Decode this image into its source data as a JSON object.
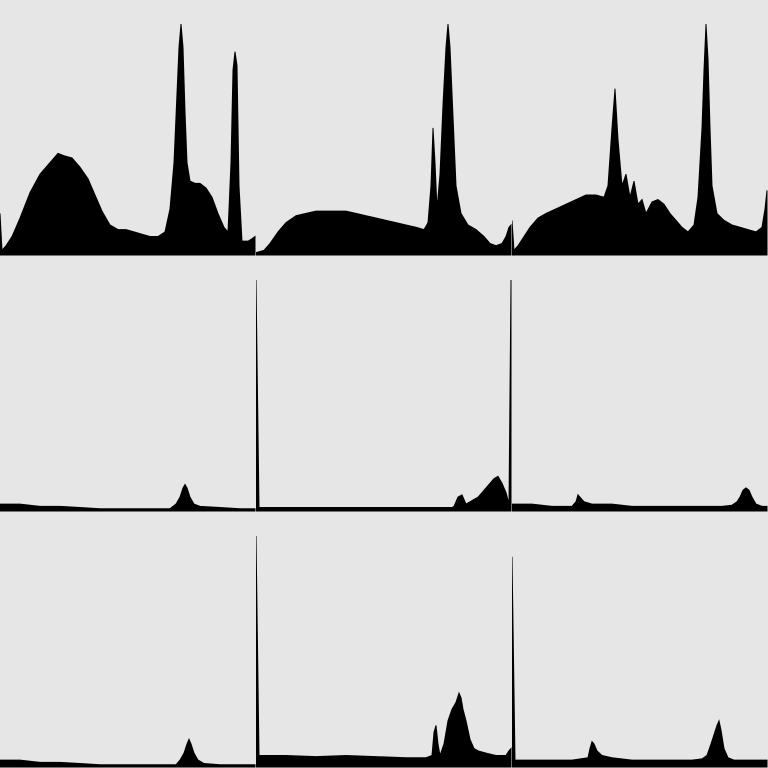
{
  "colors": {
    "background": "#e6e6e6",
    "fill": "#000000"
  },
  "chart_data": [
    {
      "type": "area",
      "title": "",
      "xlim": [
        0,
        255
      ],
      "ylim": [
        0,
        1
      ],
      "grid": false,
      "points": [
        [
          0,
          0.18
        ],
        [
          2,
          0.02
        ],
        [
          6,
          0.04
        ],
        [
          12,
          0.08
        ],
        [
          20,
          0.16
        ],
        [
          30,
          0.27
        ],
        [
          40,
          0.35
        ],
        [
          50,
          0.4
        ],
        [
          58,
          0.44
        ],
        [
          64,
          0.43
        ],
        [
          72,
          0.42
        ],
        [
          80,
          0.38
        ],
        [
          88,
          0.33
        ],
        [
          95,
          0.26
        ],
        [
          102,
          0.19
        ],
        [
          110,
          0.13
        ],
        [
          118,
          0.11
        ],
        [
          126,
          0.11
        ],
        [
          134,
          0.1
        ],
        [
          142,
          0.09
        ],
        [
          150,
          0.08
        ],
        [
          158,
          0.08
        ],
        [
          165,
          0.1
        ],
        [
          170,
          0.2
        ],
        [
          174,
          0.4
        ],
        [
          177,
          0.7
        ],
        [
          179,
          0.9
        ],
        [
          181,
          1.0
        ],
        [
          183,
          0.9
        ],
        [
          185,
          0.62
        ],
        [
          187,
          0.4
        ],
        [
          190,
          0.32
        ],
        [
          195,
          0.31
        ],
        [
          200,
          0.31
        ],
        [
          206,
          0.29
        ],
        [
          212,
          0.25
        ],
        [
          218,
          0.18
        ],
        [
          224,
          0.12
        ],
        [
          228,
          0.1
        ],
        [
          231,
          0.4
        ],
        [
          233,
          0.8
        ],
        [
          235,
          0.88
        ],
        [
          237,
          0.82
        ],
        [
          239,
          0.3
        ],
        [
          242,
          0.06
        ],
        [
          248,
          0.06
        ],
        [
          252,
          0.07
        ],
        [
          255,
          0.08
        ]
      ]
    },
    {
      "type": "area",
      "title": "",
      "xlim": [
        0,
        255
      ],
      "ylim": [
        0,
        1
      ],
      "grid": false,
      "points": [
        [
          0,
          0.01
        ],
        [
          8,
          0.02
        ],
        [
          14,
          0.05
        ],
        [
          22,
          0.1
        ],
        [
          30,
          0.14
        ],
        [
          40,
          0.17
        ],
        [
          50,
          0.18
        ],
        [
          60,
          0.19
        ],
        [
          70,
          0.19
        ],
        [
          80,
          0.19
        ],
        [
          90,
          0.19
        ],
        [
          100,
          0.18
        ],
        [
          110,
          0.17
        ],
        [
          120,
          0.16
        ],
        [
          130,
          0.15
        ],
        [
          140,
          0.14
        ],
        [
          150,
          0.13
        ],
        [
          160,
          0.12
        ],
        [
          168,
          0.11
        ],
        [
          172,
          0.14
        ],
        [
          175,
          0.3
        ],
        [
          177,
          0.55
        ],
        [
          179,
          0.4
        ],
        [
          181,
          0.2
        ],
        [
          184,
          0.35
        ],
        [
          187,
          0.65
        ],
        [
          190,
          0.9
        ],
        [
          192,
          1.0
        ],
        [
          194,
          0.9
        ],
        [
          197,
          0.6
        ],
        [
          200,
          0.3
        ],
        [
          205,
          0.18
        ],
        [
          212,
          0.13
        ],
        [
          220,
          0.11
        ],
        [
          228,
          0.08
        ],
        [
          234,
          0.05
        ],
        [
          240,
          0.04
        ],
        [
          246,
          0.05
        ],
        [
          250,
          0.08
        ],
        [
          253,
          0.12
        ],
        [
          255,
          0.13
        ]
      ]
    },
    {
      "type": "area",
      "title": "",
      "xlim": [
        0,
        255
      ],
      "ylim": [
        0,
        1
      ],
      "grid": false,
      "points": [
        [
          0,
          0.15
        ],
        [
          2,
          0.02
        ],
        [
          6,
          0.04
        ],
        [
          12,
          0.08
        ],
        [
          18,
          0.12
        ],
        [
          26,
          0.16
        ],
        [
          34,
          0.18
        ],
        [
          44,
          0.2
        ],
        [
          54,
          0.22
        ],
        [
          64,
          0.24
        ],
        [
          74,
          0.26
        ],
        [
          84,
          0.26
        ],
        [
          92,
          0.25
        ],
        [
          96,
          0.3
        ],
        [
          100,
          0.55
        ],
        [
          103,
          0.72
        ],
        [
          106,
          0.5
        ],
        [
          110,
          0.3
        ],
        [
          114,
          0.35
        ],
        [
          118,
          0.25
        ],
        [
          122,
          0.32
        ],
        [
          126,
          0.22
        ],
        [
          130,
          0.24
        ],
        [
          134,
          0.18
        ],
        [
          140,
          0.23
        ],
        [
          146,
          0.24
        ],
        [
          152,
          0.22
        ],
        [
          158,
          0.18
        ],
        [
          164,
          0.15
        ],
        [
          170,
          0.12
        ],
        [
          176,
          0.1
        ],
        [
          182,
          0.13
        ],
        [
          186,
          0.25
        ],
        [
          190,
          0.55
        ],
        [
          192,
          0.8
        ],
        [
          194,
          1.0
        ],
        [
          196,
          0.85
        ],
        [
          198,
          0.55
        ],
        [
          200,
          0.3
        ],
        [
          205,
          0.18
        ],
        [
          212,
          0.15
        ],
        [
          220,
          0.13
        ],
        [
          228,
          0.12
        ],
        [
          236,
          0.11
        ],
        [
          244,
          0.1
        ],
        [
          250,
          0.12
        ],
        [
          253,
          0.2
        ],
        [
          255,
          0.28
        ]
      ]
    },
    {
      "type": "area",
      "title": "",
      "xlim": [
        0,
        255
      ],
      "ylim": [
        0,
        1
      ],
      "grid": false,
      "points": [
        [
          0,
          0.03
        ],
        [
          20,
          0.03
        ],
        [
          40,
          0.02
        ],
        [
          60,
          0.02
        ],
        [
          80,
          0.015
        ],
        [
          100,
          0.01
        ],
        [
          120,
          0.01
        ],
        [
          140,
          0.01
        ],
        [
          160,
          0.01
        ],
        [
          170,
          0.01
        ],
        [
          176,
          0.03
        ],
        [
          180,
          0.06
        ],
        [
          183,
          0.1
        ],
        [
          185,
          0.115
        ],
        [
          187,
          0.1
        ],
        [
          190,
          0.06
        ],
        [
          194,
          0.03
        ],
        [
          200,
          0.02
        ],
        [
          220,
          0.015
        ],
        [
          240,
          0.01
        ],
        [
          250,
          0.01
        ],
        [
          255,
          0.01
        ]
      ]
    },
    {
      "type": "area",
      "title": "",
      "xlim": [
        0,
        255
      ],
      "ylim": [
        0,
        1
      ],
      "grid": false,
      "points": [
        [
          0,
          1.0
        ],
        [
          3,
          0.015
        ],
        [
          40,
          0.015
        ],
        [
          80,
          0.015
        ],
        [
          120,
          0.015
        ],
        [
          160,
          0.015
        ],
        [
          196,
          0.015
        ],
        [
          198,
          0.02
        ],
        [
          202,
          0.06
        ],
        [
          206,
          0.07
        ],
        [
          210,
          0.03
        ],
        [
          214,
          0.04
        ],
        [
          218,
          0.05
        ],
        [
          222,
          0.06
        ],
        [
          226,
          0.08
        ],
        [
          230,
          0.1
        ],
        [
          234,
          0.12
        ],
        [
          238,
          0.14
        ],
        [
          242,
          0.15
        ],
        [
          246,
          0.12
        ],
        [
          250,
          0.08
        ],
        [
          253,
          0.03
        ],
        [
          255,
          1.0
        ]
      ]
    },
    {
      "type": "area",
      "title": "",
      "xlim": [
        0,
        255
      ],
      "ylim": [
        0,
        1
      ],
      "grid": false,
      "points": [
        [
          0,
          0.03
        ],
        [
          20,
          0.03
        ],
        [
          40,
          0.02
        ],
        [
          60,
          0.02
        ],
        [
          64,
          0.04
        ],
        [
          66,
          0.07
        ],
        [
          68,
          0.06
        ],
        [
          72,
          0.04
        ],
        [
          80,
          0.03
        ],
        [
          100,
          0.03
        ],
        [
          120,
          0.02
        ],
        [
          140,
          0.02
        ],
        [
          160,
          0.02
        ],
        [
          180,
          0.02
        ],
        [
          200,
          0.02
        ],
        [
          210,
          0.02
        ],
        [
          220,
          0.025
        ],
        [
          225,
          0.04
        ],
        [
          228,
          0.06
        ],
        [
          231,
          0.09
        ],
        [
          234,
          0.1
        ],
        [
          237,
          0.09
        ],
        [
          240,
          0.06
        ],
        [
          244,
          0.03
        ],
        [
          250,
          0.02
        ],
        [
          255,
          0.02
        ]
      ]
    },
    {
      "type": "area",
      "title": "",
      "xlim": [
        0,
        255
      ],
      "ylim": [
        0,
        1
      ],
      "grid": false,
      "points": [
        [
          0,
          0.03
        ],
        [
          20,
          0.03
        ],
        [
          40,
          0.02
        ],
        [
          60,
          0.02
        ],
        [
          80,
          0.015
        ],
        [
          100,
          0.01
        ],
        [
          120,
          0.01
        ],
        [
          140,
          0.01
        ],
        [
          160,
          0.01
        ],
        [
          176,
          0.01
        ],
        [
          180,
          0.03
        ],
        [
          184,
          0.06
        ],
        [
          187,
          0.1
        ],
        [
          189,
          0.12
        ],
        [
          191,
          0.1
        ],
        [
          194,
          0.06
        ],
        [
          198,
          0.03
        ],
        [
          204,
          0.015
        ],
        [
          220,
          0.01
        ],
        [
          240,
          0.01
        ],
        [
          255,
          0.01
        ]
      ]
    },
    {
      "type": "area",
      "title": "",
      "xlim": [
        0,
        255
      ],
      "ylim": [
        0,
        1
      ],
      "grid": false,
      "points": [
        [
          0,
          1.0
        ],
        [
          3,
          0.05
        ],
        [
          30,
          0.05
        ],
        [
          60,
          0.045
        ],
        [
          90,
          0.05
        ],
        [
          120,
          0.045
        ],
        [
          150,
          0.04
        ],
        [
          170,
          0.04
        ],
        [
          176,
          0.05
        ],
        [
          178,
          0.15
        ],
        [
          180,
          0.18
        ],
        [
          182,
          0.1
        ],
        [
          184,
          0.05
        ],
        [
          188,
          0.1
        ],
        [
          192,
          0.2
        ],
        [
          196,
          0.25
        ],
        [
          200,
          0.28
        ],
        [
          203,
          0.32
        ],
        [
          205,
          0.3
        ],
        [
          207,
          0.25
        ],
        [
          210,
          0.2
        ],
        [
          214,
          0.12
        ],
        [
          218,
          0.08
        ],
        [
          222,
          0.07
        ],
        [
          230,
          0.06
        ],
        [
          240,
          0.05
        ],
        [
          250,
          0.05
        ],
        [
          253,
          0.07
        ],
        [
          255,
          0.08
        ]
      ]
    },
    {
      "type": "area",
      "title": "",
      "xlim": [
        0,
        255
      ],
      "ylim": [
        0,
        1
      ],
      "grid": false,
      "points": [
        [
          0,
          0.91
        ],
        [
          3,
          0.03
        ],
        [
          30,
          0.03
        ],
        [
          60,
          0.03
        ],
        [
          76,
          0.04
        ],
        [
          78,
          0.08
        ],
        [
          80,
          0.11
        ],
        [
          82,
          0.1
        ],
        [
          85,
          0.07
        ],
        [
          90,
          0.05
        ],
        [
          100,
          0.04
        ],
        [
          120,
          0.03
        ],
        [
          150,
          0.03
        ],
        [
          180,
          0.03
        ],
        [
          190,
          0.035
        ],
        [
          195,
          0.05
        ],
        [
          199,
          0.1
        ],
        [
          202,
          0.14
        ],
        [
          205,
          0.18
        ],
        [
          207,
          0.2
        ],
        [
          209,
          0.16
        ],
        [
          212,
          0.08
        ],
        [
          216,
          0.04
        ],
        [
          222,
          0.03
        ],
        [
          240,
          0.03
        ],
        [
          255,
          0.03
        ]
      ]
    }
  ]
}
